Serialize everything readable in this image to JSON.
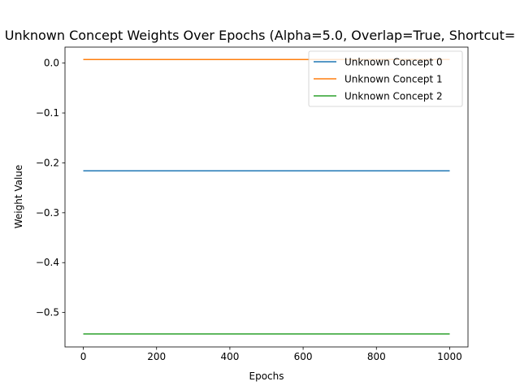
{
  "chart_data": {
    "type": "line",
    "title": "Unknown Concept Weights Over Epochs (Alpha=5.0, Overlap=True, Shortcut=",
    "xlabel": "Epochs",
    "ylabel": "Weight Value",
    "xlim": [
      -50,
      1050
    ],
    "ylim": [
      -0.569,
      0.032
    ],
    "x_ticks": [
      0,
      200,
      400,
      600,
      800,
      1000
    ],
    "x_tick_labels": [
      "0",
      "200",
      "400",
      "600",
      "800",
      "1000"
    ],
    "y_ticks": [
      0.0,
      -0.1,
      -0.2,
      -0.3,
      -0.4,
      -0.5
    ],
    "y_tick_labels": [
      "0.0",
      "−0.1",
      "−0.2",
      "−0.3",
      "−0.4",
      "−0.5"
    ],
    "grid": false,
    "legend_position": "top-right",
    "x": [
      0,
      1000
    ],
    "series": [
      {
        "name": "Unknown Concept 0",
        "color": "#1f77b4",
        "values": [
          -0.216,
          -0.216
        ]
      },
      {
        "name": "Unknown Concept 1",
        "color": "#ff7f0e",
        "values": [
          0.007,
          0.007
        ]
      },
      {
        "name": "Unknown Concept 2",
        "color": "#2ca02c",
        "values": [
          -0.543,
          -0.543
        ]
      }
    ]
  }
}
